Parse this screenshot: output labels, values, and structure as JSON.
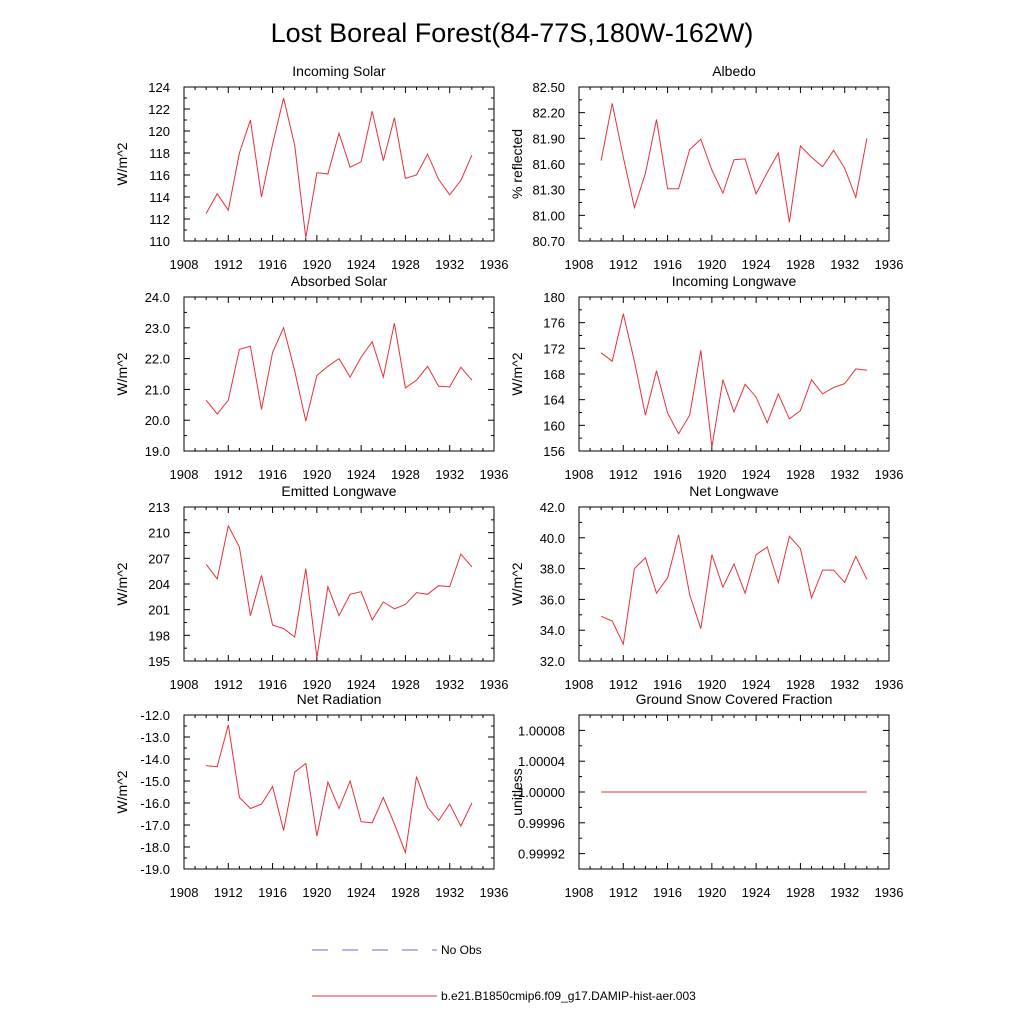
{
  "figure": {
    "title": "Lost Boreal Forest(84-77S,180W-162W)",
    "legend": [
      {
        "label": "No Obs",
        "color": "#6a6ad0",
        "style": "dashed"
      },
      {
        "label": "b.e21.B1850cmip6.f09_g17.DAMIP-hist-aer.003",
        "color": "#e8303a",
        "style": "solid"
      }
    ]
  },
  "chart_data": [
    {
      "type": "line",
      "title": "Incoming Solar",
      "ylabel": "W/m^2",
      "xlim": [
        1908,
        1936
      ],
      "xticks": [
        "1908",
        "1912",
        "1916",
        "1920",
        "1924",
        "1928",
        "1932",
        "1936"
      ],
      "ylim": [
        110,
        124
      ],
      "yticks": [
        "110",
        "112",
        "114",
        "116",
        "118",
        "120",
        "122",
        "124"
      ],
      "series_color": "#e8303a",
      "x": [
        1910,
        1911,
        1912,
        1913,
        1914,
        1915,
        1916,
        1917,
        1918,
        1919,
        1920,
        1921,
        1922,
        1923,
        1924,
        1925,
        1926,
        1927,
        1928,
        1929,
        1930,
        1931,
        1932,
        1933,
        1934
      ],
      "values": [
        112.5,
        114.3,
        112.8,
        118.0,
        121.0,
        114.0,
        118.8,
        123.0,
        118.7,
        110.3,
        116.2,
        116.1,
        119.8,
        116.7,
        117.2,
        121.8,
        117.3,
        121.2,
        115.7,
        116.0,
        117.9,
        115.6,
        114.2,
        115.5,
        117.8
      ]
    },
    {
      "type": "line",
      "title": "Albedo",
      "ylabel": "% reflected",
      "xlim": [
        1908,
        1936
      ],
      "xticks": [
        "1908",
        "1912",
        "1916",
        "1920",
        "1924",
        "1928",
        "1932",
        "1936"
      ],
      "ylim": [
        80.7,
        82.5
      ],
      "yticks": [
        "80.70",
        "81.00",
        "81.30",
        "81.60",
        "81.90",
        "82.20",
        "82.50"
      ],
      "series_color": "#e8303a",
      "x": [
        1910,
        1911,
        1912,
        1913,
        1914,
        1915,
        1916,
        1917,
        1918,
        1919,
        1920,
        1921,
        1922,
        1923,
        1924,
        1925,
        1926,
        1927,
        1928,
        1929,
        1930,
        1931,
        1932,
        1933,
        1934
      ],
      "values": [
        81.64,
        82.31,
        81.68,
        81.09,
        81.49,
        82.12,
        81.31,
        81.31,
        81.77,
        81.89,
        81.53,
        81.26,
        81.65,
        81.66,
        81.25,
        81.5,
        81.73,
        80.92,
        81.81,
        81.68,
        81.57,
        81.76,
        81.55,
        81.21,
        81.9
      ]
    },
    {
      "type": "line",
      "title": "Absorbed Solar",
      "ylabel": "W/m^2",
      "xlim": [
        1908,
        1936
      ],
      "xticks": [
        "1908",
        "1912",
        "1916",
        "1920",
        "1924",
        "1928",
        "1932",
        "1936"
      ],
      "ylim": [
        19.0,
        24.0
      ],
      "yticks": [
        "19.0",
        "20.0",
        "21.0",
        "22.0",
        "23.0",
        "24.0"
      ],
      "series_color": "#e8303a",
      "x": [
        1910,
        1911,
        1912,
        1913,
        1914,
        1915,
        1916,
        1917,
        1918,
        1919,
        1920,
        1921,
        1922,
        1923,
        1924,
        1925,
        1926,
        1927,
        1928,
        1929,
        1930,
        1931,
        1932,
        1933,
        1934
      ],
      "values": [
        20.65,
        20.2,
        20.65,
        22.3,
        22.4,
        20.35,
        22.2,
        23.0,
        21.6,
        19.97,
        21.45,
        21.75,
        22.0,
        21.4,
        22.05,
        22.55,
        21.4,
        23.15,
        21.05,
        21.3,
        21.75,
        21.1,
        21.08,
        21.72,
        21.3
      ]
    },
    {
      "type": "line",
      "title": "Incoming Longwave",
      "ylabel": "W/m^2",
      "xlim": [
        1908,
        1936
      ],
      "xticks": [
        "1908",
        "1912",
        "1916",
        "1920",
        "1924",
        "1928",
        "1932",
        "1936"
      ],
      "ylim": [
        156,
        180
      ],
      "yticks": [
        "156",
        "160",
        "164",
        "168",
        "172",
        "176",
        "180"
      ],
      "series_color": "#e8303a",
      "x": [
        1910,
        1911,
        1912,
        1913,
        1914,
        1915,
        1916,
        1917,
        1918,
        1919,
        1920,
        1921,
        1922,
        1923,
        1924,
        1925,
        1926,
        1927,
        1928,
        1929,
        1930,
        1931,
        1932,
        1933,
        1934
      ],
      "values": [
        171.3,
        170.0,
        177.4,
        170.0,
        161.6,
        168.5,
        161.9,
        158.7,
        161.6,
        171.7,
        156.6,
        167.1,
        162.1,
        166.4,
        164.4,
        160.4,
        164.9,
        161.0,
        162.3,
        167.1,
        164.9,
        165.9,
        166.5,
        168.8,
        168.6
      ]
    },
    {
      "type": "line",
      "title": "Emitted Longwave",
      "ylabel": "W/m^2",
      "xlim": [
        1908,
        1936
      ],
      "xticks": [
        "1908",
        "1912",
        "1916",
        "1920",
        "1924",
        "1928",
        "1932",
        "1936"
      ],
      "ylim": [
        195,
        213
      ],
      "yticks": [
        "195",
        "198",
        "201",
        "204",
        "207",
        "210",
        "213"
      ],
      "series_color": "#e8303a",
      "x": [
        1910,
        1911,
        1912,
        1913,
        1914,
        1915,
        1916,
        1917,
        1918,
        1919,
        1920,
        1921,
        1922,
        1923,
        1924,
        1925,
        1926,
        1927,
        1928,
        1929,
        1930,
        1931,
        1932,
        1933,
        1934
      ],
      "values": [
        206.3,
        204.6,
        210.8,
        208.3,
        200.3,
        205.0,
        199.2,
        198.8,
        197.8,
        205.8,
        195.4,
        203.7,
        200.3,
        202.8,
        203.1,
        199.8,
        201.9,
        201.1,
        201.6,
        203.0,
        202.8,
        203.8,
        203.7,
        207.5,
        206.0
      ]
    },
    {
      "type": "line",
      "title": "Net Longwave",
      "ylabel": "W/m^2",
      "xlim": [
        1908,
        1936
      ],
      "xticks": [
        "1908",
        "1912",
        "1916",
        "1920",
        "1924",
        "1928",
        "1932",
        "1936"
      ],
      "ylim": [
        32.0,
        42.0
      ],
      "yticks": [
        "32.0",
        "34.0",
        "36.0",
        "38.0",
        "40.0",
        "42.0"
      ],
      "series_color": "#e8303a",
      "x": [
        1910,
        1911,
        1912,
        1913,
        1914,
        1915,
        1916,
        1917,
        1918,
        1919,
        1920,
        1921,
        1922,
        1923,
        1924,
        1925,
        1926,
        1927,
        1928,
        1929,
        1930,
        1931,
        1932,
        1933,
        1934
      ],
      "values": [
        34.9,
        34.6,
        33.1,
        38.0,
        38.7,
        36.4,
        37.4,
        40.2,
        36.3,
        34.1,
        38.9,
        36.8,
        38.3,
        36.4,
        38.9,
        39.4,
        37.1,
        40.1,
        39.3,
        36.1,
        37.9,
        37.9,
        37.1,
        38.8,
        37.3
      ]
    },
    {
      "type": "line",
      "title": "Net Radiation",
      "ylabel": "W/m^2",
      "xlim": [
        1908,
        1936
      ],
      "xticks": [
        "1908",
        "1912",
        "1916",
        "1920",
        "1924",
        "1928",
        "1932",
        "1936"
      ],
      "ylim": [
        -19.0,
        -12.0
      ],
      "yticks": [
        "-19.0",
        "-18.0",
        "-17.0",
        "-16.0",
        "-15.0",
        "-14.0",
        "-13.0",
        "-12.0"
      ],
      "series_color": "#e8303a",
      "x": [
        1910,
        1911,
        1912,
        1913,
        1914,
        1915,
        1916,
        1917,
        1918,
        1919,
        1920,
        1921,
        1922,
        1923,
        1924,
        1925,
        1926,
        1927,
        1928,
        1929,
        1930,
        1931,
        1932,
        1933,
        1934
      ],
      "values": [
        -14.3,
        -14.35,
        -12.45,
        -15.75,
        -16.25,
        -16.05,
        -15.25,
        -17.25,
        -14.6,
        -14.2,
        -17.5,
        -15.05,
        -16.25,
        -15.0,
        -16.85,
        -16.9,
        -15.75,
        -16.95,
        -18.25,
        -14.8,
        -16.2,
        -16.8,
        -16.05,
        -17.05,
        -16.0
      ]
    },
    {
      "type": "line",
      "title": "Ground Snow Covered Fraction",
      "ylabel": "unitless",
      "xlim": [
        1908,
        1936
      ],
      "xticks": [
        "1908",
        "1912",
        "1916",
        "1920",
        "1924",
        "1928",
        "1932",
        "1936"
      ],
      "ylim": [
        0.9999,
        1.0001
      ],
      "yticks": [
        "0.99992",
        "0.99996",
        "1.00000",
        "1.00004",
        "1.00008"
      ],
      "series_color": "#e8303a",
      "x": [
        1910,
        1911,
        1912,
        1913,
        1914,
        1915,
        1916,
        1917,
        1918,
        1919,
        1920,
        1921,
        1922,
        1923,
        1924,
        1925,
        1926,
        1927,
        1928,
        1929,
        1930,
        1931,
        1932,
        1933,
        1934
      ],
      "values": [
        1.0,
        1.0,
        1.0,
        1.0,
        1.0,
        1.0,
        1.0,
        1.0,
        1.0,
        1.0,
        1.0,
        1.0,
        1.0,
        1.0,
        1.0,
        1.0,
        1.0,
        1.0,
        1.0,
        1.0,
        1.0,
        1.0,
        1.0,
        1.0,
        1.0
      ]
    }
  ]
}
